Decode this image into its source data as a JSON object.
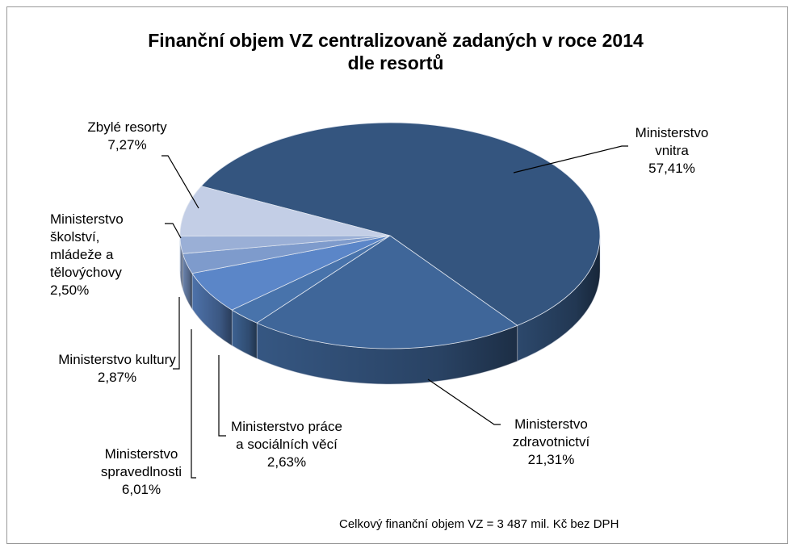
{
  "chart_data": {
    "type": "pie3d",
    "title": "Finanční objem VZ centralizovaně zadaných v roce 2014 dle resortů",
    "annotation": "Celkový finanční objem VZ = 3 487 mil. Kč bez DPH",
    "categories": [
      "Ministerstvo vnitra",
      "Ministerstvo zdravotnictví",
      "Ministerstvo práce a sociálních věcí",
      "Ministerstvo spravedlnosti",
      "Ministerstvo kultury",
      "Ministerstvo školství, mládeže a tělovýchovy",
      "Zbylé resorty"
    ],
    "values": [
      57.41,
      21.31,
      2.63,
      6.01,
      2.87,
      2.5,
      7.27
    ],
    "value_labels": [
      "57,41%",
      "21,31%",
      "2,63%",
      "6,01%",
      "2,87%",
      "2,50%",
      "7,27%"
    ],
    "colors": [
      "#34557f",
      "#3f6699",
      "#4873ab",
      "#5b86c8",
      "#7e9bcc",
      "#9aafd6",
      "#c3cee6"
    ]
  }
}
